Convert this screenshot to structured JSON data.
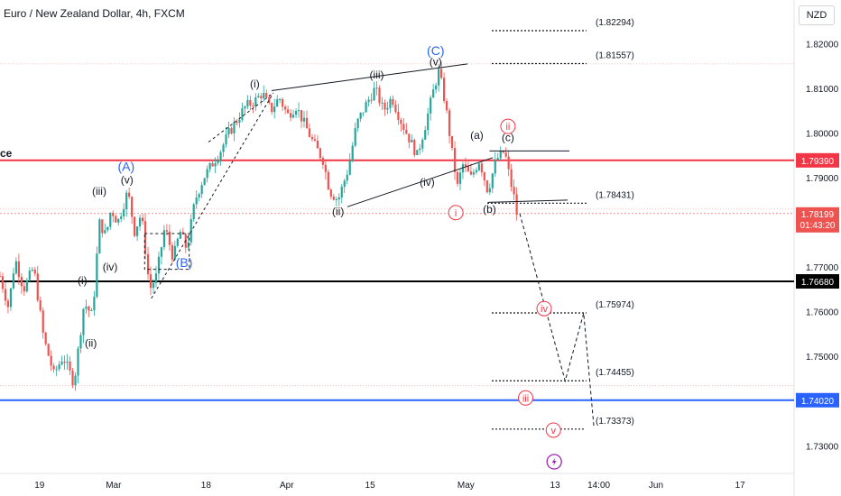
{
  "header": {
    "title": "Euro / New Zealand Dollar, 4h, FXCM",
    "currency_button": "NZD",
    "cut_label": "ce"
  },
  "colors": {
    "up": "#26a69a",
    "down": "#ef5350",
    "red_line": "#f23645",
    "blue_line": "#2962ff",
    "black_line": "#000000",
    "wave_red": "#f23645",
    "wave_blue": "#2962ff"
  },
  "chart_data": {
    "type": "candlestick",
    "title": "Euro / New Zealand Dollar, 4h, FXCM",
    "ylim": [
      1.7238,
      1.8298
    ],
    "y_ticks": [
      1.82,
      1.81,
      1.8,
      1.79,
      1.77,
      1.76,
      1.75,
      1.73
    ],
    "y_tick_labels": [
      "1.82000",
      "1.81000",
      "1.80000",
      "1.79000",
      "1.77000",
      "1.76000",
      "1.75000",
      "1.73000"
    ],
    "x_ticks": [
      "19",
      "Mar",
      "18",
      "Apr",
      "15",
      "May",
      "13",
      "14:00",
      "Jun",
      "17"
    ],
    "price_path": [
      [
        0.0,
        1.768
      ],
      [
        0.01,
        1.761
      ],
      [
        0.018,
        1.772
      ],
      [
        0.028,
        1.765
      ],
      [
        0.04,
        1.77
      ],
      [
        0.052,
        1.754
      ],
      [
        0.064,
        1.746
      ],
      [
        0.075,
        1.75
      ],
      [
        0.088,
        1.744
      ],
      [
        0.1,
        1.762
      ],
      [
        0.11,
        1.759
      ],
      [
        0.118,
        1.78
      ],
      [
        0.126,
        1.777
      ],
      [
        0.132,
        1.783
      ],
      [
        0.14,
        1.78
      ],
      [
        0.152,
        1.787
      ],
      [
        0.16,
        1.778
      ],
      [
        0.168,
        1.782
      ],
      [
        0.178,
        1.765
      ],
      [
        0.186,
        1.768
      ],
      [
        0.196,
        1.779
      ],
      [
        0.206,
        1.772
      ],
      [
        0.214,
        1.778
      ],
      [
        0.222,
        1.774
      ],
      [
        0.232,
        1.785
      ],
      [
        0.242,
        1.79
      ],
      [
        0.252,
        1.793
      ],
      [
        0.262,
        1.796
      ],
      [
        0.272,
        1.8
      ],
      [
        0.282,
        1.803
      ],
      [
        0.292,
        1.806
      ],
      [
        0.302,
        1.807
      ],
      [
        0.312,
        1.809
      ],
      [
        0.322,
        1.805
      ],
      [
        0.332,
        1.808
      ],
      [
        0.342,
        1.804
      ],
      [
        0.352,
        1.806
      ],
      [
        0.362,
        1.802
      ],
      [
        0.372,
        1.798
      ],
      [
        0.384,
        1.794
      ],
      [
        0.392,
        1.787
      ],
      [
        0.402,
        1.785
      ],
      [
        0.414,
        1.792
      ],
      [
        0.424,
        1.802
      ],
      [
        0.434,
        1.806
      ],
      [
        0.446,
        1.81
      ],
      [
        0.456,
        1.805
      ],
      [
        0.466,
        1.808
      ],
      [
        0.476,
        1.803
      ],
      [
        0.486,
        1.799
      ],
      [
        0.496,
        1.795
      ],
      [
        0.506,
        1.802
      ],
      [
        0.516,
        1.81
      ],
      [
        0.522,
        1.814
      ],
      [
        0.53,
        1.806
      ],
      [
        0.538,
        1.795
      ],
      [
        0.544,
        1.788
      ],
      [
        0.55,
        1.793
      ],
      [
        0.56,
        1.79
      ],
      [
        0.57,
        1.794
      ],
      [
        0.58,
        1.787
      ],
      [
        0.59,
        1.794
      ],
      [
        0.6,
        1.796
      ],
      [
        0.606,
        1.79
      ],
      [
        0.612,
        1.785
      ],
      [
        0.616,
        1.78
      ]
    ],
    "projection": [
      {
        "label": "iii",
        "price": 1.7445
      },
      {
        "label": "iv",
        "price": 1.7597
      },
      {
        "label": "v",
        "price": 1.7337
      }
    ],
    "wave_labels": [
      {
        "text": "(i)",
        "x": 0.098,
        "y": 1.767,
        "color": "dark"
      },
      {
        "text": "(ii)",
        "x": 0.108,
        "y": 1.753,
        "color": "dark"
      },
      {
        "text": "(iii)",
        "x": 0.118,
        "y": 1.787,
        "color": "dark"
      },
      {
        "text": "(iv)",
        "x": 0.131,
        "y": 1.77,
        "color": "dark"
      },
      {
        "text": "(v)",
        "x": 0.151,
        "y": 1.7895,
        "color": "dark"
      },
      {
        "text": "(A)",
        "x": 0.15,
        "y": 1.7925,
        "color": "blue"
      },
      {
        "text": "(B)",
        "x": 0.219,
        "y": 1.771,
        "color": "blue"
      },
      {
        "text": "(i)",
        "x": 0.303,
        "y": 1.811,
        "color": "dark"
      },
      {
        "text": "(ii)",
        "x": 0.402,
        "y": 1.7825,
        "color": "dark"
      },
      {
        "text": "(iii)",
        "x": 0.448,
        "y": 1.813,
        "color": "dark"
      },
      {
        "text": "(iv)",
        "x": 0.508,
        "y": 1.789,
        "color": "dark"
      },
      {
        "text": "(v)",
        "x": 0.518,
        "y": 1.816,
        "color": "dark"
      },
      {
        "text": "(C)",
        "x": 0.518,
        "y": 1.8185,
        "color": "blue"
      },
      {
        "text": "(a)",
        "x": 0.567,
        "y": 1.7995,
        "color": "dark"
      },
      {
        "text": "(b)",
        "x": 0.582,
        "y": 1.783,
        "color": "dark"
      },
      {
        "text": "(c)",
        "x": 0.604,
        "y": 1.799,
        "color": "dark"
      },
      {
        "text": "i",
        "x": 0.542,
        "y": 1.7822,
        "color": "red"
      },
      {
        "text": "ii",
        "x": 0.604,
        "y": 1.8015,
        "color": "red"
      },
      {
        "text": "iii",
        "x": 0.625,
        "y": 1.7407,
        "color": "red"
      },
      {
        "text": "iv",
        "x": 0.647,
        "y": 1.7607,
        "color": "red"
      },
      {
        "text": "v",
        "x": 0.658,
        "y": 1.7335,
        "color": "red"
      }
    ],
    "dotted_levels": [
      {
        "price": 1.82294,
        "label": "(1.82294)"
      },
      {
        "price": 1.81557,
        "label": "(1.81557)"
      },
      {
        "price": 1.78431,
        "label": "(1.78431)"
      },
      {
        "price": 1.75974,
        "label": "(1.75974)"
      },
      {
        "price": 1.74455,
        "label": "(1.74455)"
      },
      {
        "price": 1.73373,
        "label": "(1.73373)"
      }
    ],
    "horizontal_lines": [
      {
        "price": 1.7939,
        "label": "1.79390",
        "color": "red"
      },
      {
        "price": 1.7668,
        "label": "1.76680",
        "color": "black"
      },
      {
        "price": 1.7402,
        "label": "1.74020",
        "color": "blue"
      }
    ],
    "current_price": {
      "price": 1.78199,
      "label": "1.78199",
      "countdown": "01:43:20"
    },
    "legend": "none",
    "grid": false
  }
}
